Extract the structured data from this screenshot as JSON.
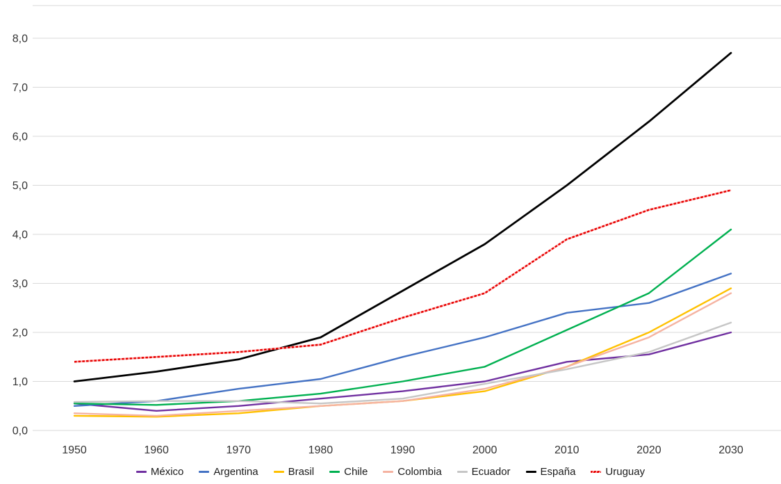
{
  "chart_data": {
    "type": "line",
    "title": "",
    "xlabel": "",
    "ylabel": "",
    "x_tick_labels": [
      "1950",
      "1960",
      "1970",
      "1980",
      "1990",
      "2000",
      "2010",
      "2020",
      "2030"
    ],
    "y_tick_labels": [
      "0,0",
      "1,0",
      "2,0",
      "3,0",
      "4,0",
      "5,0",
      "6,0",
      "7,0",
      "8,0"
    ],
    "ylim": [
      0,
      8
    ],
    "grid": true,
    "legend_position": "bottom",
    "series": [
      {
        "id": "mexico",
        "name": "México",
        "color": "#7030A0",
        "values": [
          0.55,
          0.4,
          0.5,
          0.65,
          0.8,
          1.0,
          1.4,
          1.55,
          2.0
        ]
      },
      {
        "id": "argentina",
        "name": "Argentina",
        "color": "#4472C4",
        "values": [
          0.5,
          0.6,
          0.85,
          1.05,
          1.5,
          1.9,
          2.4,
          2.6,
          3.2
        ]
      },
      {
        "id": "brasil",
        "name": "Brasil",
        "color": "#FFC000",
        "values": [
          0.3,
          0.28,
          0.35,
          0.5,
          0.6,
          0.8,
          1.3,
          2.0,
          2.9
        ]
      },
      {
        "id": "chile",
        "name": "Chile",
        "color": "#00B050",
        "values": [
          0.55,
          0.52,
          0.6,
          0.75,
          1.0,
          1.3,
          2.05,
          2.8,
          4.1
        ]
      },
      {
        "id": "colombia",
        "name": "Colombia",
        "color": "#F5B3A1",
        "values": [
          0.35,
          0.3,
          0.4,
          0.5,
          0.6,
          0.85,
          1.3,
          1.9,
          2.8
        ]
      },
      {
        "id": "ecuador",
        "name": "Ecuador",
        "color": "#C6C6C6",
        "values": [
          0.58,
          0.6,
          0.6,
          0.55,
          0.65,
          0.95,
          1.25,
          1.6,
          2.2
        ]
      },
      {
        "id": "espana",
        "name": "España",
        "color": "#000000",
        "values": [
          1.0,
          1.2,
          1.45,
          1.9,
          2.85,
          3.8,
          5.0,
          6.3,
          7.7
        ]
      },
      {
        "id": "uruguay",
        "name": "Uruguay",
        "color": "#FF2B2B",
        "pattern": "striped",
        "values": [
          1.4,
          1.5,
          1.6,
          1.75,
          2.3,
          2.8,
          3.9,
          4.5,
          4.9
        ]
      }
    ],
    "colors": {
      "gridline": "#D9D9D9",
      "tick_text": "#333333",
      "stripe_light": "#FFB0B0",
      "stripe_dark": "#E60000"
    }
  }
}
